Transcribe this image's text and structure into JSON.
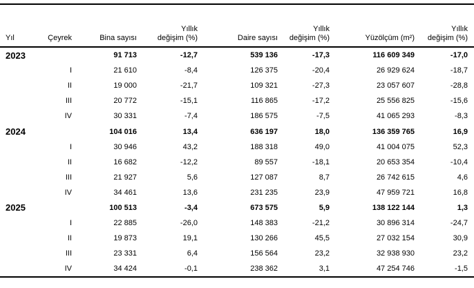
{
  "chart_data": {
    "type": "table",
    "columns": [
      "Yıl",
      "Çeyrek",
      "Bina sayısı",
      "Yıllık değişim (%)",
      "Daire sayısı",
      "Yıllık değişim (%)",
      "Yüzölçüm (m²)",
      "Yıllık değişim (%)"
    ],
    "rows": [
      {
        "year": "2023",
        "quarter": "",
        "building_count": "91 713",
        "building_annual_change_pct": "-12,7",
        "dwelling_count": "539 136",
        "dwelling_annual_change_pct": "-17,3",
        "floor_area_m2": "116 609 349",
        "floor_area_annual_change_pct": "-17,0"
      },
      {
        "year": "",
        "quarter": "I",
        "building_count": "21 610",
        "building_annual_change_pct": "-8,4",
        "dwelling_count": "126 375",
        "dwelling_annual_change_pct": "-20,4",
        "floor_area_m2": "26 929 624",
        "floor_area_annual_change_pct": "-18,7"
      },
      {
        "year": "",
        "quarter": "II",
        "building_count": "19 000",
        "building_annual_change_pct": "-21,7",
        "dwelling_count": "109 321",
        "dwelling_annual_change_pct": "-27,3",
        "floor_area_m2": "23 057 607",
        "floor_area_annual_change_pct": "-28,8"
      },
      {
        "year": "",
        "quarter": "III",
        "building_count": "20 772",
        "building_annual_change_pct": "-15,1",
        "dwelling_count": "116 865",
        "dwelling_annual_change_pct": "-17,2",
        "floor_area_m2": "25 556 825",
        "floor_area_annual_change_pct": "-15,6"
      },
      {
        "year": "",
        "quarter": "IV",
        "building_count": "30 331",
        "building_annual_change_pct": "-7,4",
        "dwelling_count": "186 575",
        "dwelling_annual_change_pct": "-7,5",
        "floor_area_m2": "41 065 293",
        "floor_area_annual_change_pct": "-8,3"
      },
      {
        "year": "2024",
        "quarter": "",
        "building_count": "104 016",
        "building_annual_change_pct": "13,4",
        "dwelling_count": "636 197",
        "dwelling_annual_change_pct": "18,0",
        "floor_area_m2": "136 359 765",
        "floor_area_annual_change_pct": "16,9"
      },
      {
        "year": "",
        "quarter": "I",
        "building_count": "30 946",
        "building_annual_change_pct": "43,2",
        "dwelling_count": "188 318",
        "dwelling_annual_change_pct": "49,0",
        "floor_area_m2": "41 004 075",
        "floor_area_annual_change_pct": "52,3"
      },
      {
        "year": "",
        "quarter": "II",
        "building_count": "16 682",
        "building_annual_change_pct": "-12,2",
        "dwelling_count": "89 557",
        "dwelling_annual_change_pct": "-18,1",
        "floor_area_m2": "20 653 354",
        "floor_area_annual_change_pct": "-10,4"
      },
      {
        "year": "",
        "quarter": "III",
        "building_count": "21 927",
        "building_annual_change_pct": "5,6",
        "dwelling_count": "127 087",
        "dwelling_annual_change_pct": "8,7",
        "floor_area_m2": "26 742 615",
        "floor_area_annual_change_pct": "4,6"
      },
      {
        "year": "",
        "quarter": "IV",
        "building_count": "34 461",
        "building_annual_change_pct": "13,6",
        "dwelling_count": "231 235",
        "dwelling_annual_change_pct": "23,9",
        "floor_area_m2": "47 959 721",
        "floor_area_annual_change_pct": "16,8"
      },
      {
        "year": "2025",
        "quarter": "",
        "building_count": "100 513",
        "building_annual_change_pct": "-3,4",
        "dwelling_count": "673 575",
        "dwelling_annual_change_pct": "5,9",
        "floor_area_m2": "138 122 144",
        "floor_area_annual_change_pct": "1,3"
      },
      {
        "year": "",
        "quarter": "I",
        "building_count": "22 885",
        "building_annual_change_pct": "-26,0",
        "dwelling_count": "148 383",
        "dwelling_annual_change_pct": "-21,2",
        "floor_area_m2": "30 896 314",
        "floor_area_annual_change_pct": "-24,7"
      },
      {
        "year": "",
        "quarter": "II",
        "building_count": "19 873",
        "building_annual_change_pct": "19,1",
        "dwelling_count": "130 266",
        "dwelling_annual_change_pct": "45,5",
        "floor_area_m2": "27 032 154",
        "floor_area_annual_change_pct": "30,9"
      },
      {
        "year": "",
        "quarter": "III",
        "building_count": "23 331",
        "building_annual_change_pct": "6,4",
        "dwelling_count": "156 564",
        "dwelling_annual_change_pct": "23,2",
        "floor_area_m2": "32 938 930",
        "floor_area_annual_change_pct": "23,2"
      },
      {
        "year": "",
        "quarter": "IV",
        "building_count": "34 424",
        "building_annual_change_pct": "-0,1",
        "dwelling_count": "238 362",
        "dwelling_annual_change_pct": "3,1",
        "floor_area_m2": "47 254 746",
        "floor_area_annual_change_pct": "-1,5"
      }
    ],
    "text_color": "#000000",
    "rule_color": "#000000",
    "background_color": "#ffffff"
  }
}
